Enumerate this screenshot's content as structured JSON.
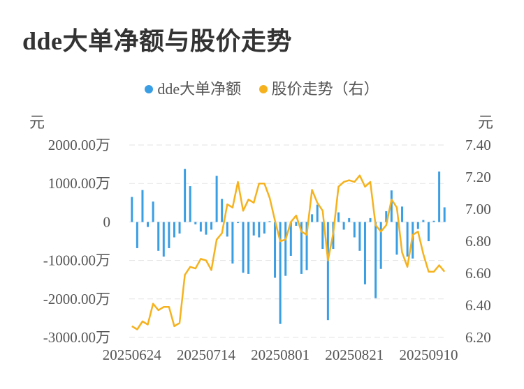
{
  "title": "dde大单净额与股价走势",
  "legend": [
    {
      "label": "dde大单净额",
      "color": "#3a9ee4"
    },
    {
      "label": "股价走势（右）",
      "color": "#f5b21e"
    }
  ],
  "colors": {
    "bar": "#3a9ee4",
    "line": "#f5b21e",
    "grid": "#e3e3e3"
  },
  "chart_data": {
    "type": "bar",
    "title": "dde大单净额与股价走势",
    "left_unit": "元",
    "right_unit": "元",
    "grid": true,
    "legend_position": "top-center",
    "y_left": {
      "min": -3000,
      "max": 2000,
      "ticks": [
        2000,
        1000,
        0,
        -1000,
        -2000,
        -3000
      ],
      "tick_labels": [
        "2000.00万",
        "1000.00万",
        "0",
        "-1000.00万",
        "-2000.00万",
        "-3000.00万"
      ]
    },
    "y_right": {
      "min": 6.2,
      "max": 7.4,
      "ticks": [
        7.4,
        7.2,
        7.0,
        6.8,
        6.6,
        6.4,
        6.2
      ],
      "tick_labels": [
        "7.40",
        "7.20",
        "7.00",
        "6.80",
        "6.60",
        "6.40",
        "6.20"
      ]
    },
    "x_tick_labels": [
      {
        "index": 0,
        "label": "20250624"
      },
      {
        "index": 14,
        "label": "20250714"
      },
      {
        "index": 28,
        "label": "20250801"
      },
      {
        "index": 42,
        "label": "20250821"
      },
      {
        "index": 56,
        "label": "20250910"
      }
    ],
    "x_count": 60,
    "series": [
      {
        "name": "dde大单净额",
        "type": "bar",
        "axis": "left",
        "values": [
          650,
          -680,
          830,
          -130,
          530,
          -750,
          -900,
          -680,
          -400,
          -300,
          1380,
          930,
          -60,
          -250,
          -330,
          -200,
          1200,
          600,
          -380,
          -1080,
          -30,
          -1320,
          -1350,
          -350,
          -400,
          -300,
          20,
          -1450,
          -2650,
          -1400,
          -880,
          -100,
          -1350,
          -1250,
          200,
          450,
          -700,
          -2550,
          -700,
          250,
          -200,
          100,
          -400,
          -750,
          -1620,
          100,
          -1980,
          -1220,
          280,
          820,
          -850,
          400,
          -900,
          -950,
          -180,
          50,
          -500,
          30,
          1310,
          380
        ]
      },
      {
        "name": "股价走势（右）",
        "type": "line",
        "axis": "right",
        "values": [
          6.27,
          6.25,
          6.3,
          6.28,
          6.41,
          6.37,
          6.39,
          6.39,
          6.27,
          6.29,
          6.59,
          6.64,
          6.63,
          6.69,
          6.68,
          6.62,
          6.81,
          6.85,
          7.03,
          7.01,
          7.17,
          6.99,
          7.06,
          7.04,
          7.16,
          7.16,
          7.07,
          6.93,
          6.8,
          6.81,
          6.92,
          6.96,
          6.86,
          6.84,
          7.12,
          7.04,
          6.99,
          6.68,
          6.85,
          7.14,
          7.17,
          7.18,
          7.17,
          7.21,
          7.14,
          7.17,
          6.9,
          6.86,
          6.9,
          7.06,
          7.01,
          6.73,
          6.64,
          6.84,
          6.86,
          6.72,
          6.61,
          6.61,
          6.65,
          6.61
        ]
      }
    ]
  }
}
